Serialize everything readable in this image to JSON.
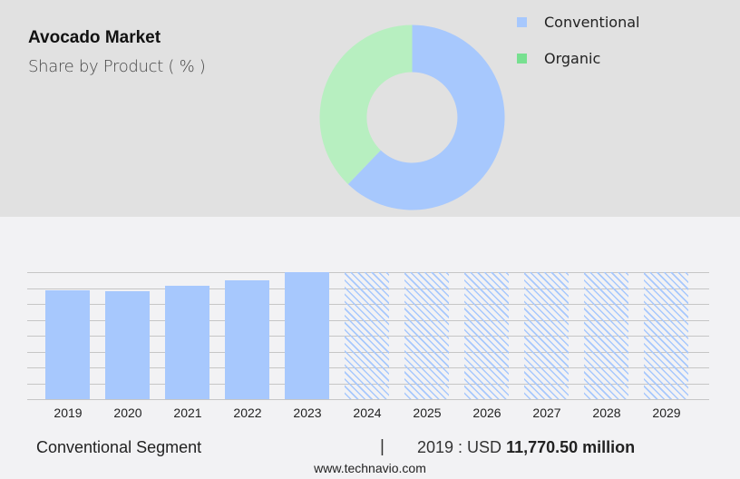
{
  "header": {
    "title": "Avocado Market",
    "subtitle": "Share by Product ( % )"
  },
  "legend": [
    {
      "label": "Conventional",
      "color": "#a7c8fd"
    },
    {
      "label": "Organic",
      "color": "#77e090"
    }
  ],
  "footer": {
    "segment": "Conventional Segment",
    "separator": "|",
    "year_label": "2019 : USD ",
    "value": "11,770.50 million",
    "url": "www.technavio.com"
  },
  "chart_data": [
    {
      "type": "pie",
      "title": "Avocado Market Share by Product ( % )",
      "donut": true,
      "categories": [
        "Conventional",
        "Organic"
      ],
      "values": [
        64,
        36
      ],
      "colors": [
        "#a7c8fd",
        "#b7efc0"
      ],
      "legend_position": "right"
    },
    {
      "type": "bar",
      "title": "Conventional Segment",
      "categories": [
        "2019",
        "2020",
        "2021",
        "2022",
        "2023",
        "2024",
        "2025",
        "2026",
        "2027",
        "2028",
        "2029"
      ],
      "values": [
        11770.5,
        11600,
        12250,
        12850,
        13700,
        null,
        null,
        null,
        null,
        null,
        null
      ],
      "forecast": [
        false,
        false,
        false,
        false,
        false,
        true,
        true,
        true,
        true,
        true,
        true
      ],
      "xlabel": "",
      "ylabel": "",
      "grid": true,
      "annotation": "2019 : USD 11,770.50 million",
      "bar_color": "#a7c8fd"
    }
  ]
}
